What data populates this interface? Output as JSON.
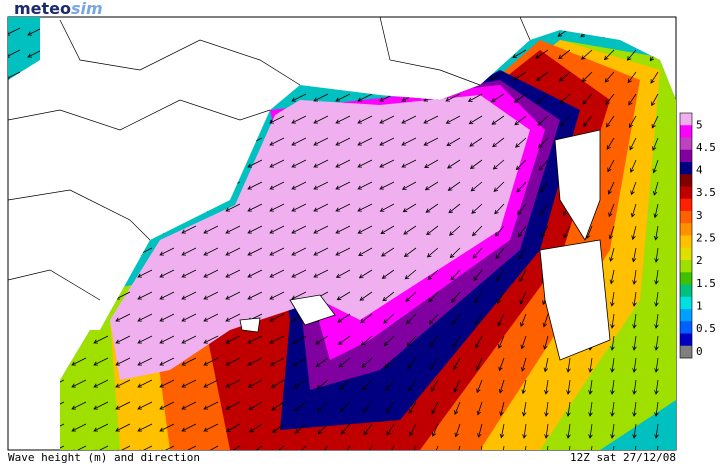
{
  "header": {
    "logo_main": "meteo",
    "logo_accent": "sim"
  },
  "footer": {
    "caption": "Wave height (m) and direction",
    "valid_time": "12Z sat 27/12/08"
  },
  "legend": {
    "labels": [
      5,
      4.5,
      4,
      3.5,
      3,
      2.5,
      2,
      1.5,
      1,
      0.5,
      0
    ],
    "colors": [
      "#f0b0f0",
      "#ff00ff",
      "#c040c0",
      "#8000a0",
      "#000080",
      "#800000",
      "#c00000",
      "#ff2000",
      "#ff6000",
      "#ff9000",
      "#ffc000",
      "#e0e000",
      "#a0e000",
      "#40c000",
      "#00c080",
      "#00e0e0",
      "#00a0ff",
      "#0060ff",
      "#0000c0",
      "#808080"
    ]
  }
}
